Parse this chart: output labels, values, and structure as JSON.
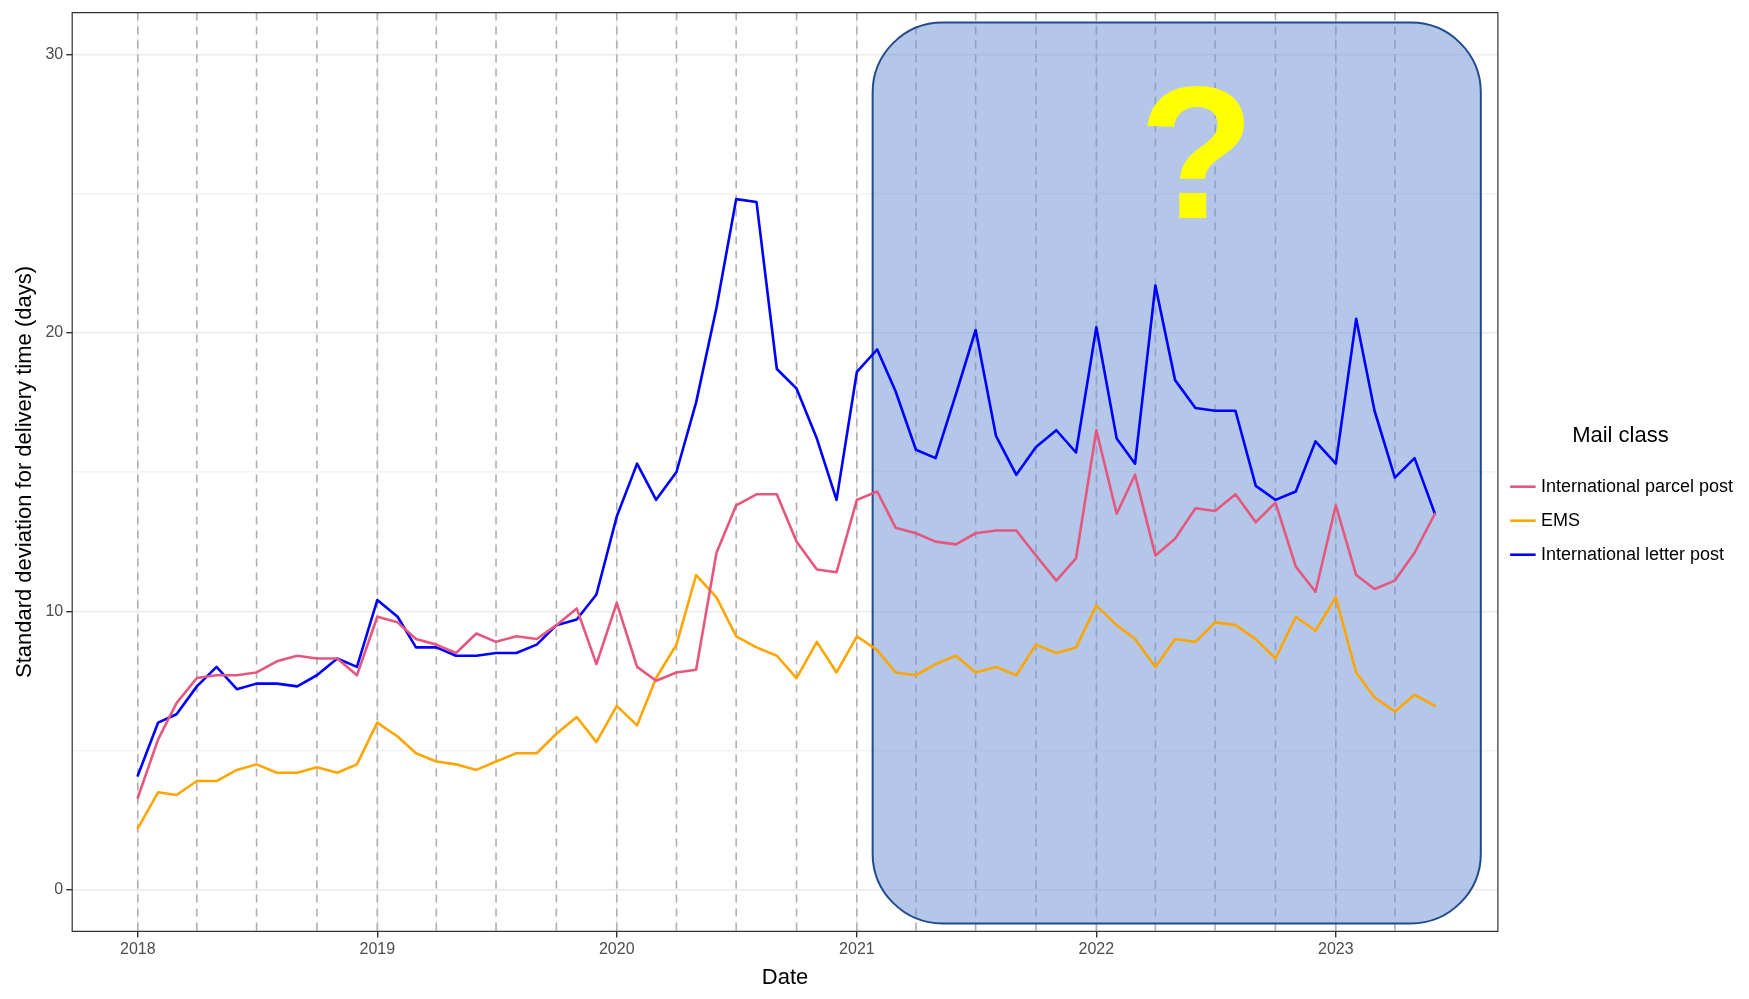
{
  "chart_data": {
    "type": "line",
    "xlabel": "Date",
    "ylabel": "Standard deviation for delivery time (days)",
    "legend_title": "Mail class",
    "legend": "right",
    "grid": true,
    "marker": "none",
    "line_style": "solid",
    "x": [
      "2018-01",
      "2018-02",
      "2018-03",
      "2018-04",
      "2018-05",
      "2018-06",
      "2018-07",
      "2018-08",
      "2018-09",
      "2018-10",
      "2018-11",
      "2018-12",
      "2019-01",
      "2019-02",
      "2019-03",
      "2019-04",
      "2019-05",
      "2019-06",
      "2019-07",
      "2019-08",
      "2019-09",
      "2019-10",
      "2019-11",
      "2019-12",
      "2020-01",
      "2020-02",
      "2020-03",
      "2020-04",
      "2020-05",
      "2020-06",
      "2020-07",
      "2020-08",
      "2020-09",
      "2020-10",
      "2020-11",
      "2020-12",
      "2021-01",
      "2021-02",
      "2021-03",
      "2021-04",
      "2021-05",
      "2021-06",
      "2021-07",
      "2021-08",
      "2021-09",
      "2021-10",
      "2021-11",
      "2021-12",
      "2022-01",
      "2022-02",
      "2022-03",
      "2022-04",
      "2022-05",
      "2022-06",
      "2022-07",
      "2022-08",
      "2022-09",
      "2022-10",
      "2022-11",
      "2022-12",
      "2023-01",
      "2023-02",
      "2023-03",
      "2023-04",
      "2023-05",
      "2023-06"
    ],
    "xlim": [
      "2017-09-23",
      "2023-09-05"
    ],
    "xticks": [
      "2018",
      "2019",
      "2020",
      "2021",
      "2022",
      "2023"
    ],
    "ylim": [
      -1.5,
      31.5
    ],
    "yticks": [
      0,
      {
        "value": 5,
        "label": null
      },
      10,
      {
        "value": 15,
        "label": null
      },
      20,
      {
        "value": 25,
        "label": null
      },
      30
    ],
    "series": [
      {
        "name": "International parcel post",
        "color": "#e5577f",
        "values": [
          3.3,
          5.4,
          6.7,
          7.6,
          7.7,
          7.7,
          7.8,
          8.2,
          8.4,
          8.3,
          8.3,
          7.7,
          9.8,
          9.6,
          9.0,
          8.8,
          8.5,
          9.2,
          8.9,
          9.1,
          9.0,
          9.5,
          10.1,
          8.1,
          10.3,
          8.0,
          7.5,
          7.8,
          7.9,
          12.1,
          13.8,
          14.2,
          14.2,
          12.5,
          11.5,
          11.4,
          14.0,
          14.3,
          13.0,
          12.8,
          12.5,
          12.4,
          12.8,
          12.9,
          12.9,
          12.0,
          11.1,
          11.9,
          16.5,
          13.5,
          14.9,
          12.0,
          12.6,
          13.7,
          13.6,
          14.2,
          13.2,
          13.9,
          11.6,
          10.7,
          13.8,
          11.3,
          10.8,
          11.1,
          12.1,
          13.5
        ]
      },
      {
        "name": "EMS",
        "color": "#ffa500",
        "values": [
          2.2,
          3.5,
          3.4,
          3.9,
          3.9,
          4.3,
          4.5,
          4.2,
          4.2,
          4.4,
          4.2,
          4.5,
          6.0,
          5.5,
          4.9,
          4.6,
          4.5,
          4.3,
          4.6,
          4.9,
          4.9,
          5.6,
          6.2,
          5.3,
          6.6,
          5.9,
          7.6,
          8.8,
          11.3,
          10.5,
          9.1,
          8.7,
          8.4,
          7.6,
          8.9,
          7.8,
          9.1,
          8.6,
          7.8,
          7.7,
          8.1,
          8.4,
          7.8,
          8.0,
          7.7,
          8.8,
          8.5,
          8.7,
          10.2,
          9.5,
          9.0,
          8.0,
          9.0,
          8.9,
          9.6,
          9.5,
          9.0,
          8.3,
          9.8,
          9.3,
          10.5,
          7.8,
          6.9,
          6.4,
          7.0,
          6.6
        ]
      },
      {
        "name": "International letter post",
        "color": "#0000ff",
        "values": [
          4.1,
          6.0,
          6.3,
          7.3,
          8.0,
          7.2,
          7.4,
          7.4,
          7.3,
          7.7,
          8.3,
          8.0,
          10.4,
          9.8,
          8.7,
          8.7,
          8.4,
          8.4,
          8.5,
          8.5,
          8.8,
          9.5,
          9.7,
          10.6,
          13.4,
          15.3,
          14.0,
          15.0,
          17.5,
          20.9,
          24.8,
          24.7,
          18.7,
          18.0,
          16.2,
          14.0,
          18.6,
          19.4,
          17.9,
          15.8,
          15.5,
          17.8,
          20.1,
          16.3,
          14.9,
          15.9,
          16.5,
          15.7,
          20.2,
          16.2,
          15.3,
          21.7,
          18.3,
          17.3,
          17.2,
          17.2,
          14.5,
          14.0,
          14.3,
          16.1,
          15.3,
          20.5,
          17.2,
          14.8,
          15.5,
          13.5
        ]
      }
    ],
    "ref_lines": [
      {
        "axis": "x",
        "value": "2018-01",
        "line_style": "dashed",
        "color": "#b0b0b0"
      },
      {
        "axis": "x",
        "value": "2018-04",
        "line_style": "dashed",
        "color": "#b0b0b0"
      },
      {
        "axis": "x",
        "value": "2018-07",
        "line_style": "dashed",
        "color": "#b0b0b0"
      },
      {
        "axis": "x",
        "value": "2018-10",
        "line_style": "dashed",
        "color": "#b0b0b0"
      },
      {
        "axis": "x",
        "value": "2019-01",
        "line_style": "dashed",
        "color": "#b0b0b0"
      },
      {
        "axis": "x",
        "value": "2019-04",
        "line_style": "dashed",
        "color": "#b0b0b0"
      },
      {
        "axis": "x",
        "value": "2019-07",
        "line_style": "dashed",
        "color": "#b0b0b0"
      },
      {
        "axis": "x",
        "value": "2019-10",
        "line_style": "dashed",
        "color": "#b0b0b0"
      },
      {
        "axis": "x",
        "value": "2020-01",
        "line_style": "dashed",
        "color": "#b0b0b0"
      },
      {
        "axis": "x",
        "value": "2020-04",
        "line_style": "dashed",
        "color": "#b0b0b0"
      },
      {
        "axis": "x",
        "value": "2020-07",
        "line_style": "dashed",
        "color": "#b0b0b0"
      },
      {
        "axis": "x",
        "value": "2020-10",
        "line_style": "dashed",
        "color": "#b0b0b0"
      },
      {
        "axis": "x",
        "value": "2021-01",
        "line_style": "dashed",
        "color": "#b0b0b0"
      },
      {
        "axis": "x",
        "value": "2021-04",
        "line_style": "dashed",
        "color": "#b0b0b0"
      },
      {
        "axis": "x",
        "value": "2021-07",
        "line_style": "dashed",
        "color": "#b0b0b0"
      },
      {
        "axis": "x",
        "value": "2021-10",
        "line_style": "dashed",
        "color": "#b0b0b0"
      },
      {
        "axis": "x",
        "value": "2022-01",
        "line_style": "dashed",
        "color": "#b0b0b0"
      },
      {
        "axis": "x",
        "value": "2022-04",
        "line_style": "dashed",
        "color": "#b0b0b0"
      },
      {
        "axis": "x",
        "value": "2022-07",
        "line_style": "dashed",
        "color": "#b0b0b0"
      },
      {
        "axis": "x",
        "value": "2022-10",
        "line_style": "dashed",
        "color": "#b0b0b0"
      },
      {
        "axis": "x",
        "value": "2023-01",
        "line_style": "dashed",
        "color": "#b0b0b0"
      },
      {
        "axis": "x",
        "value": "2023-04",
        "line_style": "dashed",
        "color": "#b0b0b0"
      }
    ],
    "bands": [
      {
        "axis": "x",
        "from": "2021-01-25",
        "to": "2023-08-10",
        "label": "?",
        "color": "#6f93d2"
      }
    ]
  }
}
